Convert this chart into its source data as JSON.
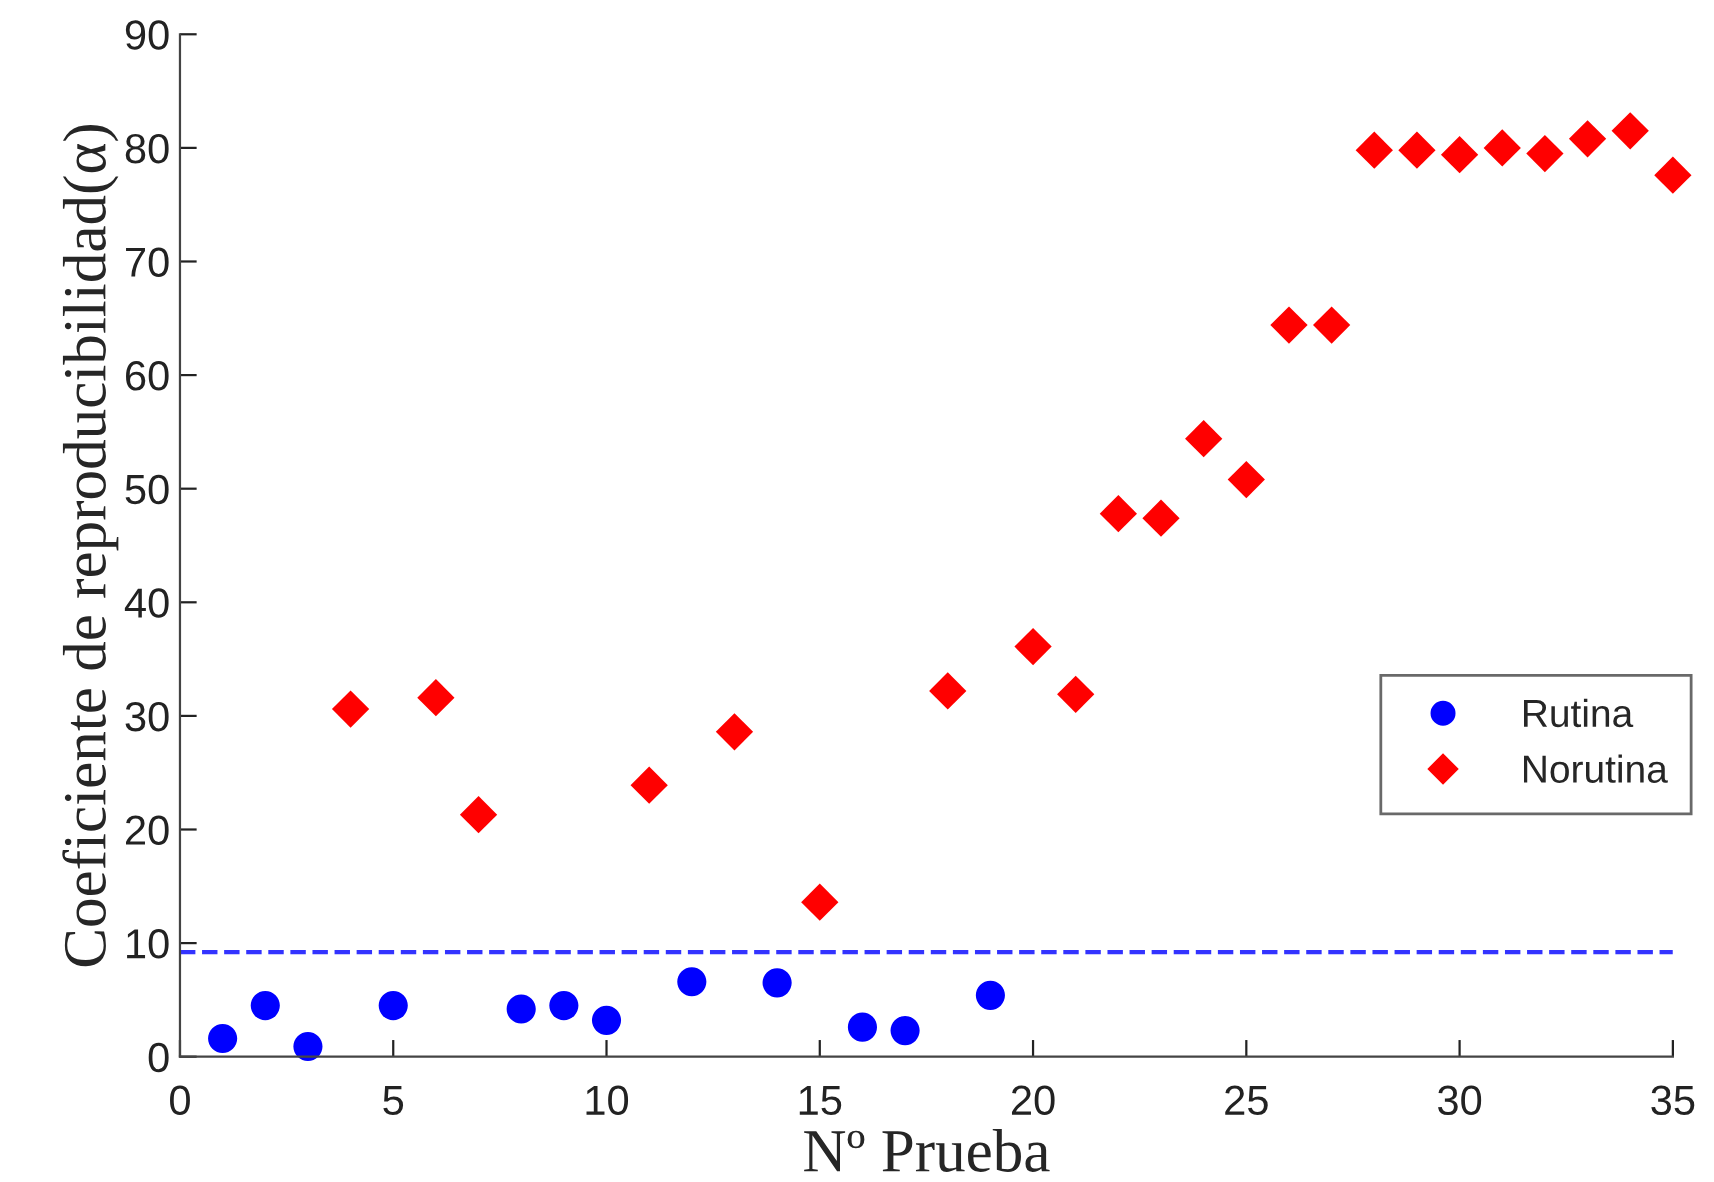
{
  "chart_data": {
    "type": "scatter",
    "xlabel": "Nº Prueba",
    "ylabel": "Coeficiente de reproducibilidad(α)",
    "xlim": [
      0,
      35
    ],
    "xticks": [
      0,
      5,
      10,
      15,
      20,
      25,
      30,
      35
    ],
    "ylim": [
      0,
      90
    ],
    "yticks": [
      0,
      10,
      20,
      30,
      40,
      50,
      60,
      70,
      80,
      90
    ],
    "series": [
      {
        "name": "Rutina",
        "color": "#0000ff",
        "marker": "circle",
        "x": [
          1,
          2,
          3,
          5,
          8,
          9,
          10,
          12,
          14,
          16,
          17,
          19
        ],
        "values": [
          1.6,
          4.5,
          0.9,
          4.5,
          4.2,
          4.5,
          3.2,
          6.6,
          6.5,
          2.6,
          2.3,
          5.4
        ]
      },
      {
        "name": "Norutina",
        "color": "#ff0000",
        "marker": "diamond",
        "x": [
          4,
          6,
          7,
          11,
          13,
          15,
          18,
          20,
          21,
          22,
          23,
          24,
          25,
          26,
          27,
          28,
          29,
          30,
          31,
          32,
          33,
          34,
          35
        ],
        "values": [
          30.6,
          31.6,
          21.3,
          23.9,
          28.6,
          13.6,
          32.2,
          36.1,
          31.9,
          47.8,
          47.4,
          54.4,
          50.8,
          64.4,
          64.4,
          79.8,
          79.8,
          79.4,
          80.0,
          79.5,
          80.8,
          81.5,
          77.6
        ]
      }
    ],
    "ref_lines": [
      {
        "axis": "y",
        "value": 9.2,
        "color": "#3333ff",
        "line_style": "dashed"
      }
    ],
    "legend": "right",
    "grid": false
  }
}
